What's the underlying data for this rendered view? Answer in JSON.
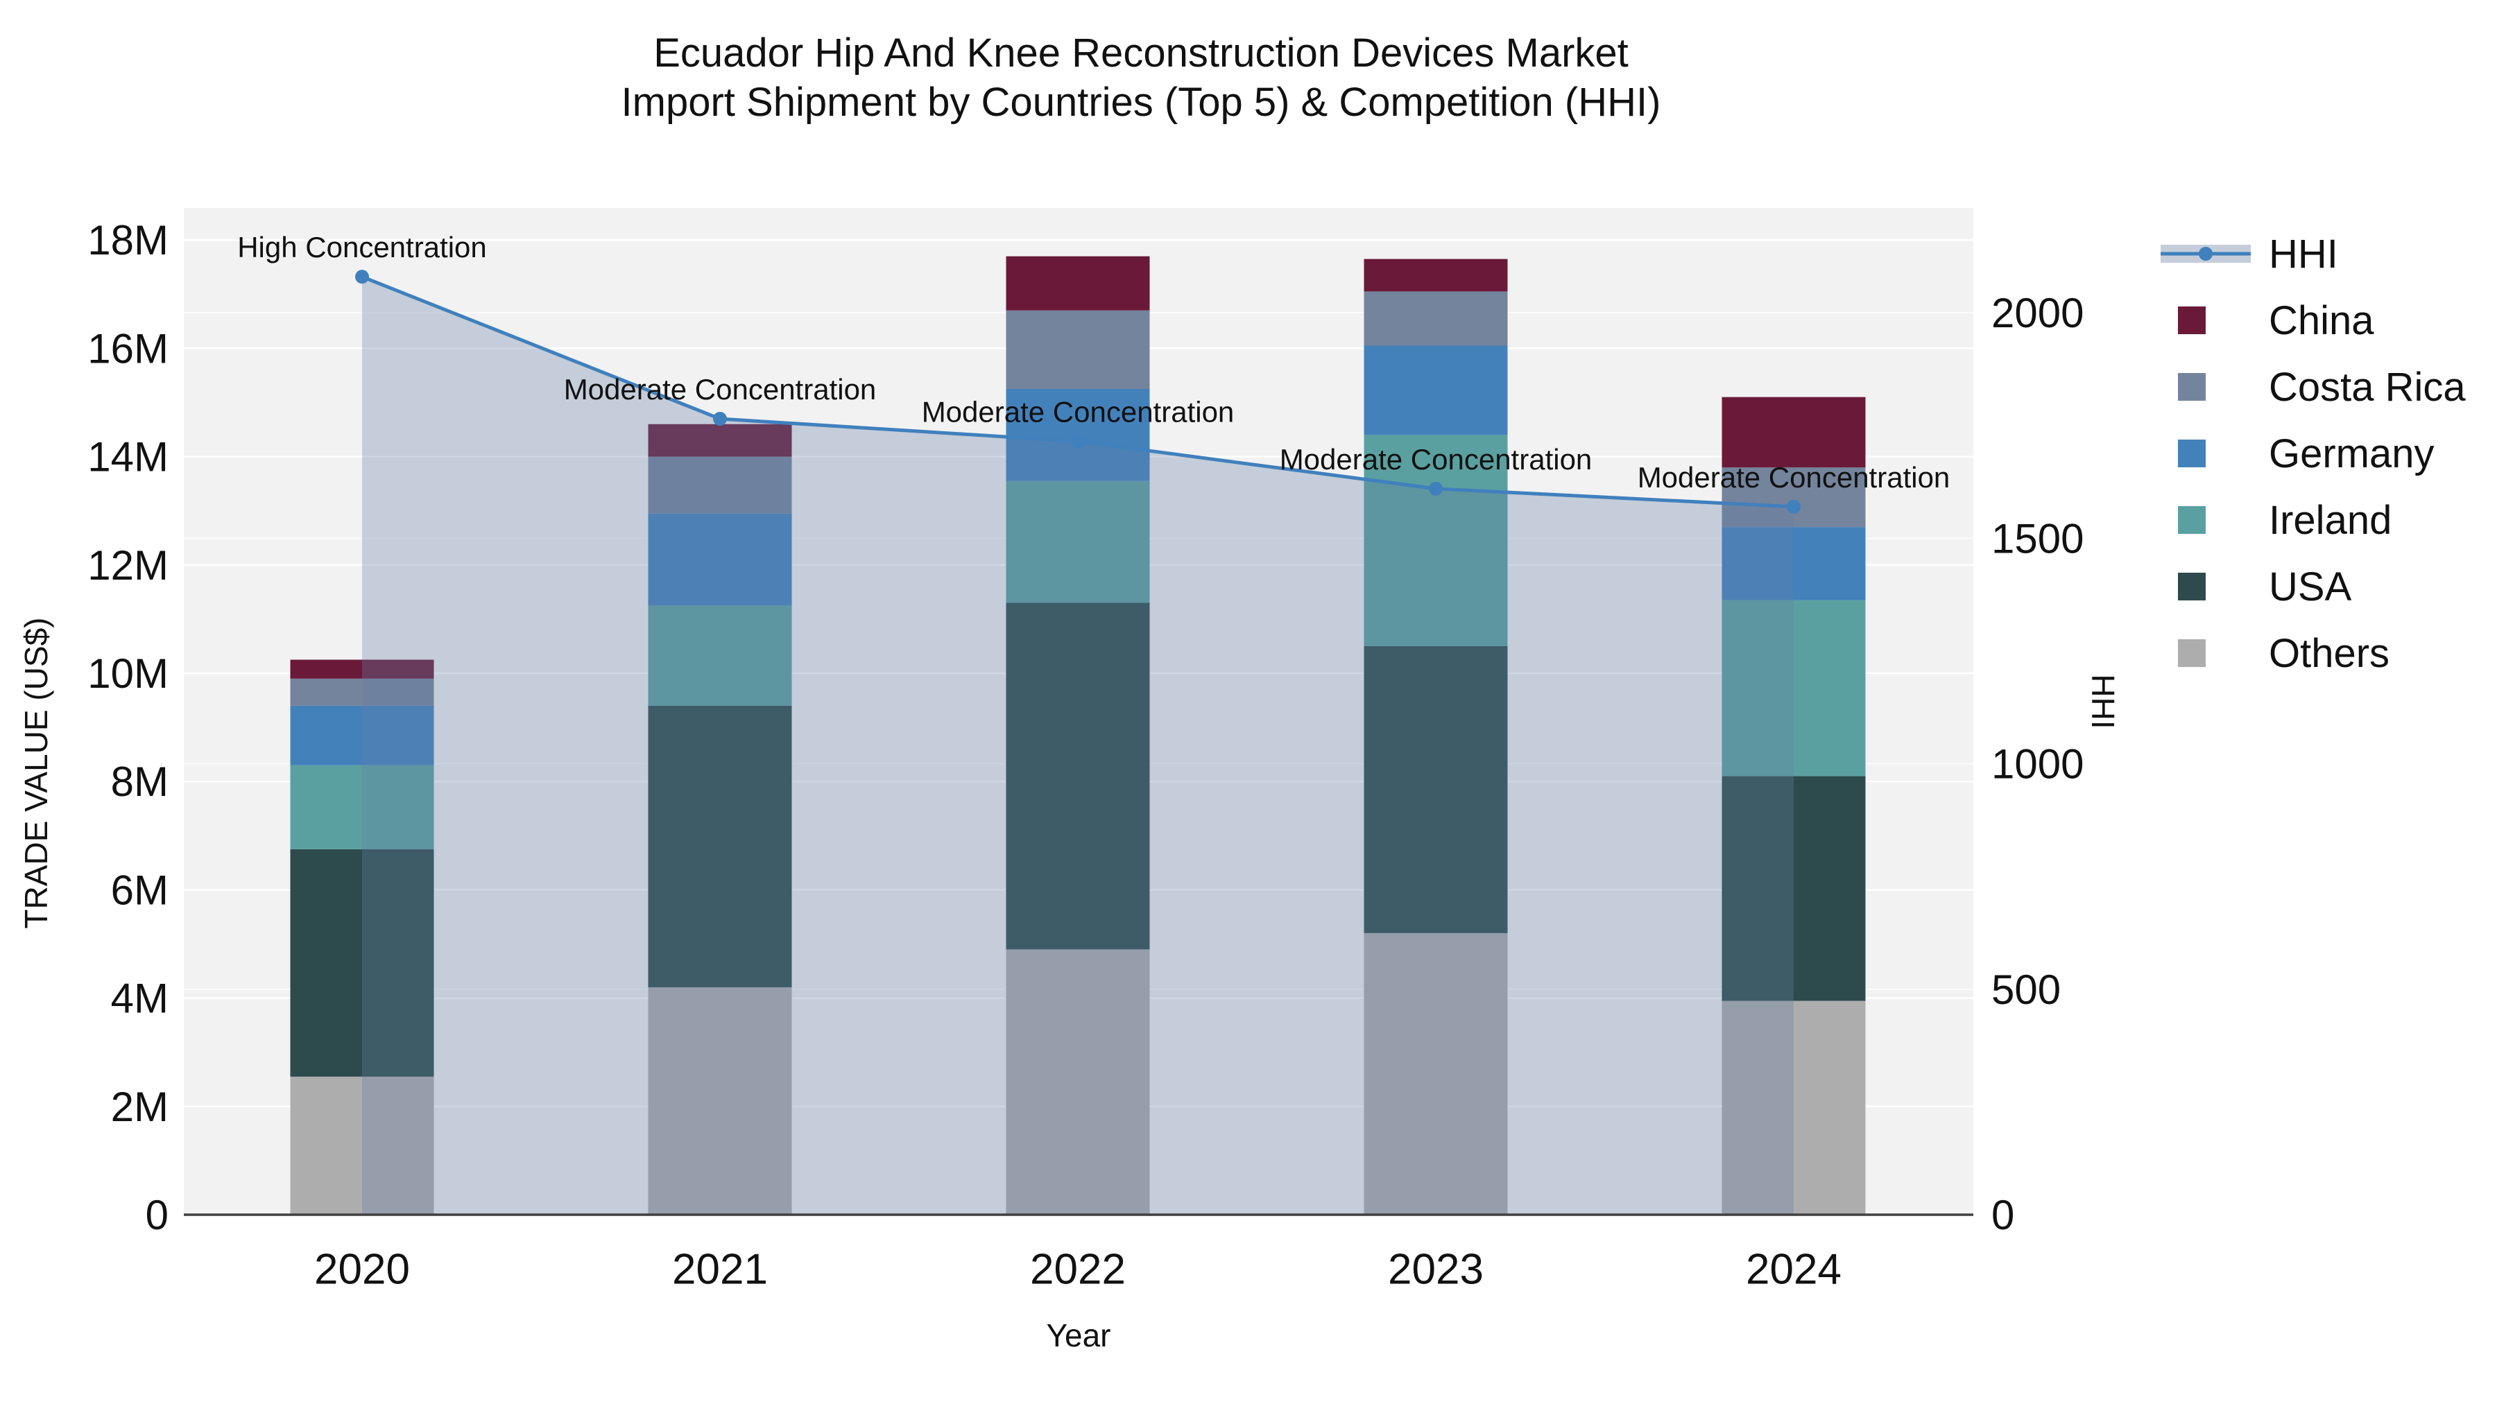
{
  "title": {
    "line1": "Ecuador Hip And Knee Reconstruction Devices Market",
    "line2": "Import Shipment by Countries (Top 5) & Competition (HHI)"
  },
  "chart_data": {
    "type": "bar",
    "subtype": "stacked-bars-with-secondary-axis-line",
    "categories": [
      "2020",
      "2021",
      "2022",
      "2023",
      "2024"
    ],
    "unit": "US$ millions",
    "series": [
      {
        "name": "China",
        "color": "#6a1a38",
        "values": [
          0.35,
          0.6,
          1.0,
          0.6,
          1.3
        ]
      },
      {
        "name": "Costa Rica",
        "color": "#74849c",
        "values": [
          0.5,
          1.05,
          1.45,
          1.0,
          1.1
        ]
      },
      {
        "name": "Germany",
        "color": "#4381bb",
        "values": [
          1.1,
          1.7,
          1.7,
          1.65,
          1.35
        ]
      },
      {
        "name": "Ireland",
        "color": "#5ba0a0",
        "values": [
          1.55,
          1.85,
          2.25,
          3.9,
          3.25
        ]
      },
      {
        "name": "USA",
        "color": "#2d4a4c",
        "values": [
          4.2,
          5.2,
          6.4,
          5.3,
          4.15
        ]
      },
      {
        "name": "Others",
        "color": "#adadad",
        "values": [
          2.55,
          4.2,
          4.9,
          5.2,
          3.95
        ]
      }
    ],
    "stack_order": [
      "Others",
      "USA",
      "Ireland",
      "Germany",
      "Costa Rica",
      "China"
    ],
    "totals": [
      10.25,
      14.6,
      17.7,
      17.65,
      15.1
    ],
    "line_series": {
      "name": "HHI",
      "color": "#4080bd",
      "area_color": "rgba(99,128,165,0.32)",
      "values": [
        2080,
        1765,
        1715,
        1610,
        1570
      ]
    },
    "annotations": [
      "High Concentration",
      "Moderate Concentration",
      "Moderate Concentration",
      "Moderate Concentration",
      "Moderate Concentration"
    ],
    "xlabel": "Year",
    "ylabel_left": "TRADE VALUE (US$)",
    "ylabel_right": "HHI",
    "yticks_left": {
      "values": [
        0,
        2,
        4,
        6,
        8,
        10,
        12,
        14,
        16,
        18
      ],
      "labels": [
        "0",
        "2M",
        "4M",
        "6M",
        "8M",
        "10M",
        "12M",
        "14M",
        "16M",
        "18M"
      ]
    },
    "yticks_right": {
      "values": [
        0,
        500,
        1000,
        1500,
        2000
      ],
      "labels": [
        "0",
        "500",
        "1000",
        "1500",
        "2000"
      ]
    },
    "ylim_left": [
      0,
      18600000
    ],
    "ylim_right": [
      0,
      2233
    ],
    "grid": true,
    "legend_position": "right"
  },
  "legend": {
    "items": [
      {
        "label": "HHI",
        "type": "line",
        "color": "#4080bd",
        "band_color": "#c4cdd9"
      },
      {
        "label": "China",
        "type": "square",
        "color": "#6a1a38"
      },
      {
        "label": "Costa Rica",
        "type": "square",
        "color": "#74849c"
      },
      {
        "label": "Germany",
        "type": "square",
        "color": "#4381bb"
      },
      {
        "label": "Ireland",
        "type": "square",
        "color": "#5ba0a0"
      },
      {
        "label": "USA",
        "type": "square",
        "color": "#2d4a4c"
      },
      {
        "label": "Others",
        "type": "square",
        "color": "#adadad"
      }
    ]
  },
  "colors": {
    "plot_bg": "#f2f2f2",
    "grid": "#ffffff",
    "axis_line": "#3f3f3f",
    "text": "#111111"
  }
}
